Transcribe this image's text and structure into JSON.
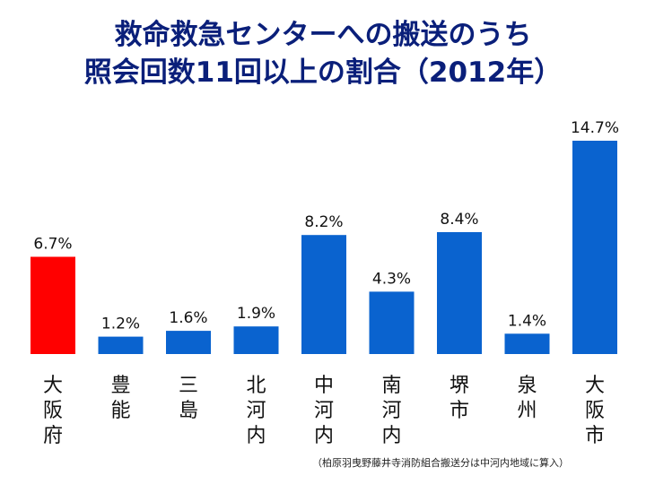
{
  "title": {
    "line1": "救命救急センターへの搬送のうち",
    "line2": "照会回数11回以上の割合（2012年）"
  },
  "colors": {
    "title": "#0a1f7a",
    "highlight": "#ff0000",
    "bar": "#0a63cf"
  },
  "chart_data": {
    "type": "bar",
    "title": "救命救急センターへの搬送のうち照会回数11回以上の割合（2012年）",
    "categories": [
      "大阪府",
      "豊能",
      "三島",
      "北河内",
      "中河内",
      "南河内",
      "堺市",
      "泉州",
      "大阪市"
    ],
    "values": [
      6.7,
      1.2,
      1.6,
      1.9,
      8.2,
      4.3,
      8.4,
      1.4,
      14.7
    ],
    "value_labels": [
      "6.7%",
      "1.2%",
      "1.6%",
      "1.9%",
      "8.2%",
      "4.3%",
      "8.4%",
      "1.4%",
      "14.7%"
    ],
    "highlight_index": 0,
    "unit": "%",
    "xlabel": "",
    "ylabel": "",
    "ylim": [
      0,
      16
    ],
    "grid": false,
    "legend": "none"
  },
  "note": "（柏原羽曳野藤井寺消防組合搬送分は中河内地域に算入）"
}
